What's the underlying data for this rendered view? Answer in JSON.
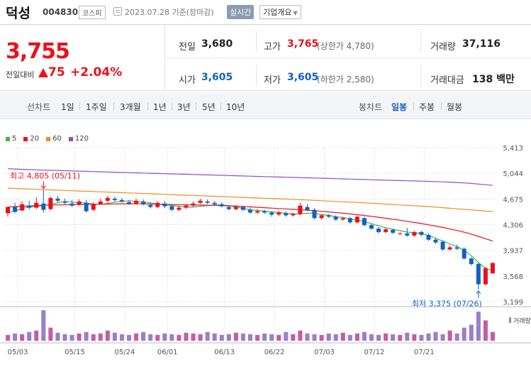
{
  "header": {
    "name": "덕성",
    "code": "004830",
    "market": "코스피",
    "datetime": "2023.07.28 기준(장마감)",
    "realtime": "실시간",
    "overview": "기업개요"
  },
  "price": {
    "current": "3,755",
    "change_label": "전일대비",
    "change_amount": "75",
    "change_rate": "+2.04%"
  },
  "stats": {
    "prev_label": "전일",
    "prev_value": "3,680",
    "high_label": "고가",
    "high_value": "3,765",
    "upper_limit": "(상한가 4,780)",
    "volume_label": "거래량",
    "volume_value": "37,116",
    "open_label": "시가",
    "open_value": "3,605",
    "low_label": "저가",
    "low_value": "3,605",
    "lower_limit": "(하한가 2,580)",
    "amount_label": "거래대금",
    "amount_value": "138 백만"
  },
  "tabs": {
    "line_title": "선차트",
    "line_items": [
      "1일",
      "1주일",
      "3개월",
      "1년",
      "3년",
      "5년",
      "10년"
    ],
    "candle_title": "봉차트",
    "candle_items": [
      "일봉",
      "주봉",
      "월봉"
    ],
    "candle_active": "일봉"
  },
  "legend": [
    {
      "name": "5",
      "color": "#3cb84a"
    },
    {
      "name": "20",
      "color": "#e8121d"
    },
    {
      "name": "60",
      "color": "#f08c1e"
    },
    {
      "name": "120",
      "color": "#8a4fc7"
    }
  ],
  "chart_data": {
    "type": "candlestick",
    "y_ticks": [
      "5,413",
      "5,044",
      "4,675",
      "4,306",
      "3,937",
      "3,568",
      "3,199"
    ],
    "ylim": [
      3199,
      5413
    ],
    "x_ticks": [
      "05/03",
      "05/15",
      "05/24",
      "06/01",
      "06/13",
      "06/22",
      "07/03",
      "07/12",
      "07/21"
    ],
    "high_annotation": "최고 4,805 (05/11)",
    "low_annotation": "최저 3,375 (07/26)",
    "volume_label": "거래량",
    "candles": [
      [
        4470,
        4560,
        4560,
        4420
      ],
      [
        4560,
        4490,
        4620,
        4470
      ],
      [
        4510,
        4600,
        4640,
        4500
      ],
      [
        4580,
        4550,
        4650,
        4520
      ],
      [
        4550,
        4620,
        4700,
        4530
      ],
      [
        4610,
        4520,
        4805,
        4480
      ],
      [
        4530,
        4690,
        4710,
        4510
      ],
      [
        4680,
        4650,
        4720,
        4620
      ],
      [
        4640,
        4620,
        4680,
        4600
      ],
      [
        4610,
        4580,
        4660,
        4560
      ],
      [
        4600,
        4640,
        4670,
        4580
      ],
      [
        4620,
        4500,
        4660,
        4480
      ],
      [
        4520,
        4600,
        4630,
        4500
      ],
      [
        4600,
        4640,
        4680,
        4590
      ],
      [
        4650,
        4690,
        4720,
        4620
      ],
      [
        4680,
        4660,
        4710,
        4630
      ],
      [
        4660,
        4640,
        4690,
        4620
      ],
      [
        4630,
        4610,
        4660,
        4590
      ],
      [
        4610,
        4650,
        4680,
        4590
      ],
      [
        4640,
        4600,
        4670,
        4580
      ],
      [
        4590,
        4560,
        4620,
        4540
      ],
      [
        4560,
        4620,
        4640,
        4540
      ],
      [
        4610,
        4570,
        4650,
        4540
      ],
      [
        4570,
        4520,
        4600,
        4500
      ],
      [
        4520,
        4550,
        4580,
        4500
      ],
      [
        4550,
        4580,
        4600,
        4530
      ],
      [
        4580,
        4610,
        4640,
        4560
      ],
      [
        4620,
        4650,
        4680,
        4600
      ],
      [
        4640,
        4620,
        4670,
        4600
      ],
      [
        4620,
        4600,
        4650,
        4580
      ],
      [
        4600,
        4570,
        4630,
        4550
      ],
      [
        4560,
        4530,
        4590,
        4510
      ],
      [
        4530,
        4560,
        4590,
        4510
      ],
      [
        4560,
        4520,
        4580,
        4500
      ],
      [
        4520,
        4480,
        4550,
        4460
      ],
      [
        4480,
        4500,
        4530,
        4460
      ],
      [
        4500,
        4480,
        4520,
        4460
      ],
      [
        4480,
        4450,
        4500,
        4420
      ],
      [
        4450,
        4480,
        4510,
        4430
      ],
      [
        4470,
        4440,
        4500,
        4420
      ],
      [
        4440,
        4460,
        4480,
        4420
      ],
      [
        4460,
        4580,
        4620,
        4440
      ],
      [
        4560,
        4520,
        4600,
        4500
      ],
      [
        4520,
        4400,
        4540,
        4380
      ],
      [
        4400,
        4440,
        4460,
        4380
      ],
      [
        4440,
        4420,
        4460,
        4400
      ],
      [
        4420,
        4380,
        4440,
        4360
      ],
      [
        4380,
        4400,
        4420,
        4360
      ],
      [
        4400,
        4340,
        4420,
        4320
      ],
      [
        4340,
        4420,
        4440,
        4320
      ],
      [
        4400,
        4300,
        4420,
        4280
      ],
      [
        4300,
        4250,
        4320,
        4230
      ],
      [
        4250,
        4200,
        4270,
        4180
      ],
      [
        4200,
        4240,
        4260,
        4180
      ],
      [
        4230,
        4190,
        4250,
        4170
      ],
      [
        4180,
        4180,
        4200,
        4160
      ],
      [
        4180,
        4150,
        4260,
        4130
      ],
      [
        4150,
        4200,
        4220,
        4130
      ],
      [
        4200,
        4160,
        4220,
        4140
      ],
      [
        4160,
        4090,
        4180,
        4070
      ],
      [
        4090,
        4050,
        4110,
        4030
      ],
      [
        4060,
        3950,
        4080,
        3930
      ],
      [
        3950,
        3980,
        4010,
        3930
      ],
      [
        3980,
        3960,
        4020,
        3940
      ],
      [
        3960,
        3820,
        3980,
        3800
      ],
      [
        3820,
        3740,
        3840,
        3720
      ],
      [
        3740,
        3450,
        3760,
        3375
      ],
      [
        3450,
        3680,
        3700,
        3430
      ],
      [
        3605,
        3755,
        3765,
        3605
      ]
    ],
    "ma5": [
      4480,
      4500,
      4540,
      4560,
      4570,
      4580,
      4600,
      4620,
      4640,
      4630,
      4620,
      4620,
      4600,
      4600,
      4610,
      4630,
      4640,
      4650,
      4640,
      4630,
      4620,
      4600,
      4590,
      4580,
      4570,
      4560,
      4560,
      4570,
      4580,
      4590,
      4590,
      4580,
      4560,
      4540,
      4520,
      4510,
      4500,
      4490,
      4480,
      4470,
      4460,
      4460,
      4470,
      4470,
      4450,
      4440,
      4420,
      4410,
      4390,
      4370,
      4350,
      4320,
      4290,
      4260,
      4240,
      4220,
      4200,
      4190,
      4180,
      4150,
      4110,
      4070,
      4030,
      3990,
      3940,
      3860,
      3760,
      3680,
      3650
    ],
    "ma20": [
      4560,
      4565,
      4570,
      4575,
      4580,
      4585,
      4590,
      4590,
      4592,
      4594,
      4596,
      4598,
      4600,
      4600,
      4602,
      4604,
      4606,
      4606,
      4605,
      4604,
      4602,
      4600,
      4598,
      4596,
      4594,
      4592,
      4590,
      4588,
      4586,
      4584,
      4580,
      4576,
      4572,
      4568,
      4562,
      4556,
      4550,
      4544,
      4538,
      4532,
      4526,
      4520,
      4514,
      4506,
      4498,
      4490,
      4480,
      4470,
      4460,
      4450,
      4438,
      4426,
      4412,
      4398,
      4384,
      4370,
      4354,
      4338,
      4322,
      4304,
      4286,
      4266,
      4244,
      4222,
      4198,
      4170,
      4138,
      4104,
      4070
    ],
    "ma60": [
      4830,
      4826,
      4822,
      4818,
      4814,
      4810,
      4806,
      4802,
      4798,
      4794,
      4790,
      4786,
      4782,
      4778,
      4774,
      4770,
      4766,
      4762,
      4758,
      4754,
      4750,
      4746,
      4742,
      4738,
      4734,
      4730,
      4726,
      4722,
      4718,
      4714,
      4710,
      4706,
      4702,
      4698,
      4694,
      4690,
      4686,
      4682,
      4678,
      4674,
      4670,
      4665,
      4660,
      4655,
      4650,
      4645,
      4640,
      4635,
      4630,
      4625,
      4620,
      4614,
      4608,
      4602,
      4596,
      4590,
      4584,
      4578,
      4572,
      4566,
      4558,
      4550,
      4542,
      4534,
      4526,
      4518,
      4510,
      4502,
      4494
    ],
    "ma120": [
      5110,
      5106,
      5102,
      5098,
      5094,
      5090,
      5087,
      5084,
      5081,
      5078,
      5075,
      5072,
      5069,
      5066,
      5063,
      5060,
      5057,
      5054,
      5051,
      5048,
      5045,
      5042,
      5039,
      5036,
      5033,
      5030,
      5027,
      5024,
      5021,
      5018,
      5015,
      5012,
      5009,
      5006,
      5003,
      5000,
      4997,
      4994,
      4991,
      4988,
      4985,
      4982,
      4979,
      4976,
      4973,
      4970,
      4967,
      4964,
      4961,
      4958,
      4955,
      4952,
      4949,
      4946,
      4943,
      4940,
      4937,
      4934,
      4931,
      4928,
      4925,
      4921,
      4917,
      4912,
      4906,
      4899,
      4890,
      4880,
      4870
    ],
    "volume": [
      8,
      10,
      9,
      12,
      14,
      42,
      18,
      11,
      9,
      8,
      10,
      12,
      9,
      10,
      14,
      11,
      9,
      8,
      10,
      12,
      9,
      8,
      10,
      9,
      8,
      11,
      10,
      9,
      12,
      10,
      8,
      9,
      11,
      10,
      9,
      8,
      10,
      9,
      8,
      12,
      9,
      14,
      10,
      9,
      8,
      10,
      9,
      11,
      8,
      10,
      12,
      9,
      8,
      10,
      9,
      8,
      11,
      9,
      8,
      10,
      12,
      9,
      14,
      10,
      18,
      22,
      40,
      28,
      12
    ]
  }
}
